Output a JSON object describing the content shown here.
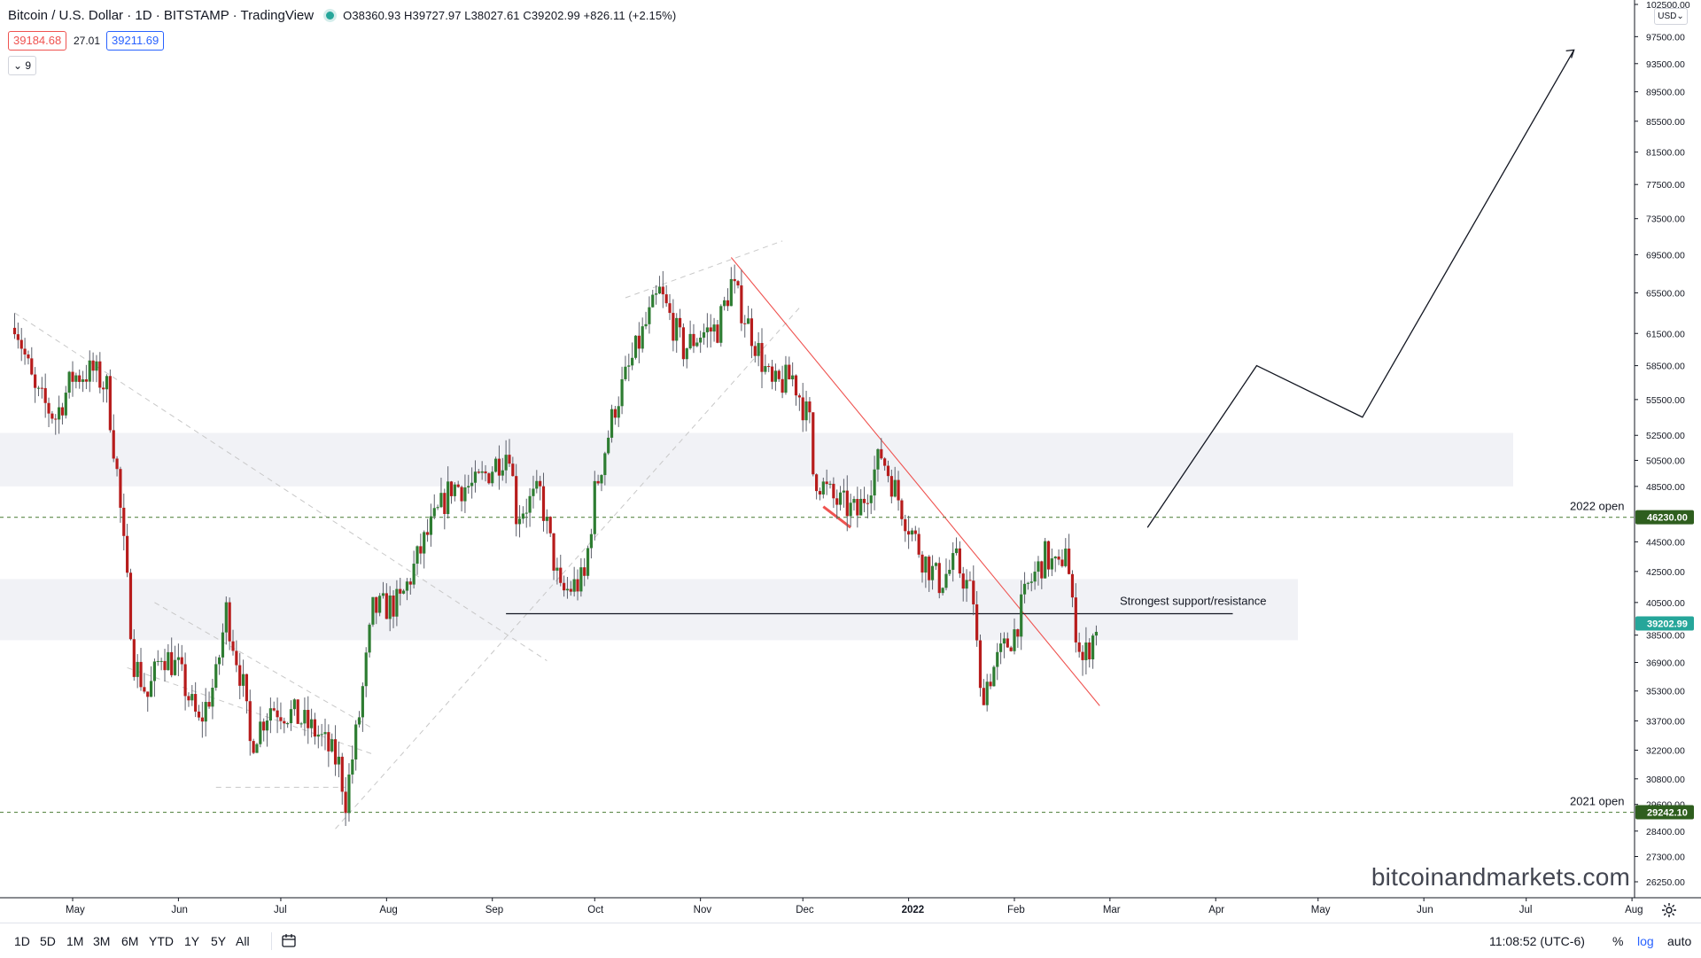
{
  "header": {
    "title": "Bitcoin / U.S. Dollar · 1D · BITSTAMP · TradingView",
    "ohlc": "O38360.93 H39727.97 L38027.61 C39202.99 +826.11 (+2.15%)",
    "sell_price": "39184.68",
    "spread": "27.01",
    "buy_price": "39211.69",
    "indicator_count": "9",
    "currency": "USD"
  },
  "annotations": {
    "open_2022": "2022 open",
    "open_2021": "2021 open",
    "support_label": "Strongest support/resistance",
    "watermark": "bitcoinandmarkets.com"
  },
  "toolbar": {
    "timeframes": [
      "1D",
      "5D",
      "1M",
      "3M",
      "6M",
      "YTD",
      "1Y",
      "5Y",
      "All"
    ],
    "time": "11:08:52 (UTC-6)",
    "percent": "%",
    "log": "log",
    "auto": "auto"
  },
  "colors": {
    "up": "#26a69a",
    "down": "#ef5350",
    "candle_body_up": "#2e7d32",
    "candle_body_down": "#b71c1c",
    "open_line": "#5d8a4a",
    "last_price": "#26a69a"
  },
  "chart_data": {
    "type": "candlestick",
    "symbol": "BTCUSD",
    "exchange": "BITSTAMP",
    "interval": "1D",
    "scale": "log",
    "last_close": 39202.99,
    "y_ticks": [
      102500,
      97500,
      93500,
      89500,
      85500,
      81500,
      77500,
      73500,
      69500,
      65500,
      61500,
      58500,
      55500,
      52500,
      50500,
      48500,
      44500,
      42500,
      40500,
      38500,
      36900,
      35300,
      33700,
      32200,
      30800,
      29600,
      28400,
      27300,
      26250
    ],
    "price_labels": [
      {
        "price": 46230.0,
        "text": "46230.00",
        "kind": "2022 open"
      },
      {
        "price": 39202.99,
        "text": "39202.99",
        "kind": "last"
      },
      {
        "price": 29242.1,
        "text": "29242.10",
        "kind": "2021 open"
      }
    ],
    "x_ticks": [
      {
        "label": "May",
        "date": "2021-05-01"
      },
      {
        "label": "Jun",
        "date": "2021-06-01"
      },
      {
        "label": "Jul",
        "date": "2021-07-01"
      },
      {
        "label": "Aug",
        "date": "2021-08-01"
      },
      {
        "label": "Sep",
        "date": "2021-09-01"
      },
      {
        "label": "Oct",
        "date": "2021-10-01"
      },
      {
        "label": "Nov",
        "date": "2021-11-01"
      },
      {
        "label": "Dec",
        "date": "2021-12-01"
      },
      {
        "label": "2022",
        "date": "2022-01-01"
      },
      {
        "label": "Feb",
        "date": "2022-02-01"
      },
      {
        "label": "Mar",
        "date": "2022-03-01"
      },
      {
        "label": "Apr",
        "date": "2022-04-01"
      },
      {
        "label": "May",
        "date": "2022-05-01"
      },
      {
        "label": "Jun",
        "date": "2022-06-01"
      },
      {
        "label": "Jul",
        "date": "2022-07-01"
      },
      {
        "label": "Aug",
        "date": "2022-08-01"
      }
    ],
    "candles": [
      {
        "date": "2021-04-14",
        "close": 63000
      },
      {
        "date": "2021-04-20",
        "close": 56000
      },
      {
        "date": "2021-04-26",
        "close": 54000
      },
      {
        "date": "2021-05-01",
        "close": 57500
      },
      {
        "date": "2021-05-07",
        "close": 58000
      },
      {
        "date": "2021-05-11",
        "close": 56500
      },
      {
        "date": "2021-05-14",
        "close": 49500
      },
      {
        "date": "2021-05-19",
        "close": 37000
      },
      {
        "date": "2021-05-23",
        "close": 35000
      },
      {
        "date": "2021-05-27",
        "close": 37500
      },
      {
        "date": "2021-06-01",
        "close": 36500
      },
      {
        "date": "2021-06-07",
        "close": 33500
      },
      {
        "date": "2021-06-12",
        "close": 36000
      },
      {
        "date": "2021-06-15",
        "close": 40000
      },
      {
        "date": "2021-06-20",
        "close": 35500
      },
      {
        "date": "2021-06-22",
        "close": 32500
      },
      {
        "date": "2021-06-28",
        "close": 34500
      },
      {
        "date": "2021-07-05",
        "close": 34000
      },
      {
        "date": "2021-07-12",
        "close": 33000
      },
      {
        "date": "2021-07-18",
        "close": 31500
      },
      {
        "date": "2021-07-20",
        "close": 29800
      },
      {
        "date": "2021-07-24",
        "close": 34000
      },
      {
        "date": "2021-07-28",
        "close": 40000
      },
      {
        "date": "2021-08-05",
        "close": 40500
      },
      {
        "date": "2021-08-12",
        "close": 44500
      },
      {
        "date": "2021-08-20",
        "close": 48500
      },
      {
        "date": "2021-08-27",
        "close": 48500
      },
      {
        "date": "2021-09-06",
        "close": 51500
      },
      {
        "date": "2021-09-08",
        "close": 46500
      },
      {
        "date": "2021-09-15",
        "close": 48000
      },
      {
        "date": "2021-09-21",
        "close": 41000
      },
      {
        "date": "2021-09-28",
        "close": 42000
      },
      {
        "date": "2021-10-01",
        "close": 48000
      },
      {
        "date": "2021-10-07",
        "close": 55000
      },
      {
        "date": "2021-10-15",
        "close": 61500
      },
      {
        "date": "2021-10-20",
        "close": 65500
      },
      {
        "date": "2021-10-27",
        "close": 60000
      },
      {
        "date": "2021-11-01",
        "close": 61500
      },
      {
        "date": "2021-11-06",
        "close": 62000
      },
      {
        "date": "2021-11-10",
        "close": 66500
      },
      {
        "date": "2021-11-16",
        "close": 61500
      },
      {
        "date": "2021-11-22",
        "close": 56500
      },
      {
        "date": "2021-11-28",
        "close": 57500
      },
      {
        "date": "2021-12-03",
        "close": 53500
      },
      {
        "date": "2021-12-04",
        "close": 49500
      },
      {
        "date": "2021-12-10",
        "close": 47500
      },
      {
        "date": "2021-12-17",
        "close": 46500
      },
      {
        "date": "2021-12-24",
        "close": 51000
      },
      {
        "date": "2021-12-31",
        "close": 46300
      },
      {
        "date": "2022-01-05",
        "close": 43500
      },
      {
        "date": "2022-01-10",
        "close": 41800
      },
      {
        "date": "2022-01-15",
        "close": 43100
      },
      {
        "date": "2022-01-20",
        "close": 40700
      },
      {
        "date": "2022-01-22",
        "close": 35000
      },
      {
        "date": "2022-01-27",
        "close": 37000
      },
      {
        "date": "2022-02-01",
        "close": 38700
      },
      {
        "date": "2022-02-05",
        "close": 41500
      },
      {
        "date": "2022-02-10",
        "close": 43500
      },
      {
        "date": "2022-02-14",
        "close": 42500
      },
      {
        "date": "2022-02-16",
        "close": 44500
      },
      {
        "date": "2022-02-18",
        "close": 40000
      },
      {
        "date": "2022-02-21",
        "close": 37000
      },
      {
        "date": "2022-02-24",
        "close": 38400
      },
      {
        "date": "2022-02-25",
        "close": 39202.99
      }
    ],
    "zones": [
      {
        "from": 48500,
        "to": 52700
      },
      {
        "from": 38200,
        "to": 42000
      }
    ],
    "levels": [
      {
        "price": 46230.0,
        "label": "2022 open"
      },
      {
        "price": 29242.1,
        "label": "2021 open"
      },
      {
        "price": 39800,
        "label": "Strongest support/resistance"
      }
    ]
  }
}
